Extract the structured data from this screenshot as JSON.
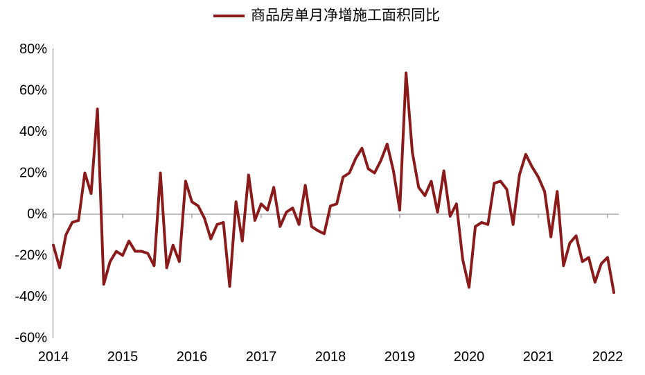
{
  "legend": {
    "label": "商品房单月净增施工面积同比"
  },
  "chart_data": {
    "type": "line",
    "title": "商品房单月净增施工面积同比",
    "legend_position": "top-center",
    "grid": "zero-line-only",
    "line_color": "#8B1A1A",
    "axis_color": "#9B9B9B",
    "text_color": "#000000",
    "ylim": [
      -60,
      80
    ],
    "y_tick_step": 20,
    "y_ticks": [
      {
        "value": 80,
        "label": "80%"
      },
      {
        "value": 60,
        "label": "60%"
      },
      {
        "value": 40,
        "label": "40%"
      },
      {
        "value": 20,
        "label": "20%"
      },
      {
        "value": 0,
        "label": "0%"
      },
      {
        "value": -20,
        "label": "-20%"
      },
      {
        "value": -40,
        "label": "-40%"
      },
      {
        "value": -60,
        "label": "-60%"
      }
    ],
    "x_tick_labels": [
      "2014",
      "2015",
      "2016",
      "2017",
      "2018",
      "2019",
      "2020",
      "2021",
      "2022"
    ],
    "x": [
      "2014-02",
      "2014-03",
      "2014-04",
      "2014-05",
      "2014-06",
      "2014-07",
      "2014-08",
      "2014-09",
      "2014-10",
      "2014-11",
      "2014-12",
      "2015-02",
      "2015-03",
      "2015-04",
      "2015-05",
      "2015-06",
      "2015-07",
      "2015-08",
      "2015-09",
      "2015-10",
      "2015-11",
      "2015-12",
      "2016-02",
      "2016-03",
      "2016-04",
      "2016-05",
      "2016-06",
      "2016-07",
      "2016-08",
      "2016-09",
      "2016-10",
      "2016-11",
      "2016-12",
      "2017-02",
      "2017-03",
      "2017-04",
      "2017-05",
      "2017-06",
      "2017-07",
      "2017-08",
      "2017-09",
      "2017-10",
      "2017-11",
      "2017-12",
      "2018-02",
      "2018-03",
      "2018-04",
      "2018-05",
      "2018-06",
      "2018-07",
      "2018-08",
      "2018-09",
      "2018-10",
      "2018-11",
      "2018-12",
      "2019-02",
      "2019-03",
      "2019-04",
      "2019-05",
      "2019-06",
      "2019-07",
      "2019-08",
      "2019-09",
      "2019-10",
      "2019-11",
      "2019-12",
      "2020-02",
      "2020-03",
      "2020-04",
      "2020-05",
      "2020-06",
      "2020-07",
      "2020-08",
      "2020-09",
      "2020-10",
      "2020-11",
      "2020-12",
      "2021-02",
      "2021-03",
      "2021-04",
      "2021-05",
      "2021-06",
      "2021-07",
      "2021-08",
      "2021-09",
      "2021-10",
      "2021-11",
      "2021-12",
      "2022-02",
      "2022-03"
    ],
    "series": [
      {
        "name": "商品房单月净增施工面积同比",
        "unit": "%",
        "values": [
          -15,
          -26,
          -10,
          -4,
          -3,
          20,
          10,
          51,
          -34,
          -23,
          -18,
          -20,
          -13,
          -18,
          -18,
          -19,
          -25,
          20,
          -26,
          -15,
          -23,
          16,
          6,
          4,
          -2,
          -12,
          -5,
          -4,
          -35,
          6,
          -13,
          19,
          -3,
          5,
          2,
          13,
          -6,
          1,
          3,
          -5,
          14,
          -6,
          -8,
          -9.5,
          4,
          5,
          18,
          20,
          27,
          32,
          22,
          20,
          26,
          34,
          21,
          2,
          68.5,
          30,
          13,
          9,
          16,
          1,
          21,
          -1,
          5,
          -22,
          -35.5,
          -6,
          -4,
          -5,
          15,
          16,
          12,
          -5,
          19,
          29,
          23,
          18,
          11,
          -11,
          11,
          -25,
          -14,
          -10.5,
          -23,
          -21,
          -33,
          -24,
          -21,
          -38
        ]
      }
    ]
  }
}
